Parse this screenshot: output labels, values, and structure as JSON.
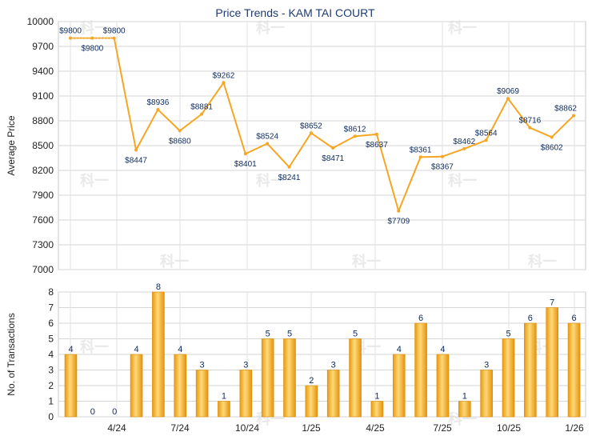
{
  "chart_data": [
    {
      "type": "line",
      "title": "Price Trends - KAM TAI COURT",
      "ylabel": "Average Price",
      "ylim": [
        7000,
        10000
      ],
      "yticks": [
        7000,
        7300,
        7600,
        7900,
        8200,
        8500,
        8800,
        9100,
        9400,
        9700,
        10000
      ],
      "values": [
        9800,
        9800,
        9800,
        8447,
        8936,
        8680,
        8881,
        9262,
        8401,
        8524,
        8241,
        8652,
        8471,
        8612,
        8637,
        7709,
        8361,
        8367,
        8462,
        8564,
        9069,
        8716,
        8602,
        8862
      ],
      "labels": [
        "$9800",
        "$9800",
        "$9800",
        "$8447",
        "$8936",
        "$8680",
        "$8881",
        "$9262",
        "$8401",
        "$8524",
        "$8241",
        "$8652",
        "$8471",
        "$8612",
        "$8637",
        "$7709",
        "$8361",
        "$8367",
        "$8462",
        "$8564",
        "$9069",
        "$8716",
        "$8602",
        "$8862"
      ],
      "dotted_segments": 2,
      "color": "#f5a623",
      "grid": true
    },
    {
      "type": "bar",
      "ylabel": "No. of Transactions",
      "ylim": [
        0,
        8
      ],
      "yticks": [
        0,
        1,
        2,
        3,
        4,
        5,
        6,
        7,
        8
      ],
      "values": [
        4,
        0,
        0,
        4,
        8,
        4,
        3,
        1,
        3,
        5,
        5,
        2,
        3,
        5,
        1,
        4,
        6,
        4,
        1,
        3,
        5,
        6,
        7,
        6
      ],
      "xtick_labels": [
        "4/24",
        "7/24",
        "10/24",
        "1/25",
        "4/25",
        "7/25",
        "10/25",
        "1/26"
      ],
      "color": "#f5a623",
      "grid": true
    }
  ],
  "watermark": "科一"
}
